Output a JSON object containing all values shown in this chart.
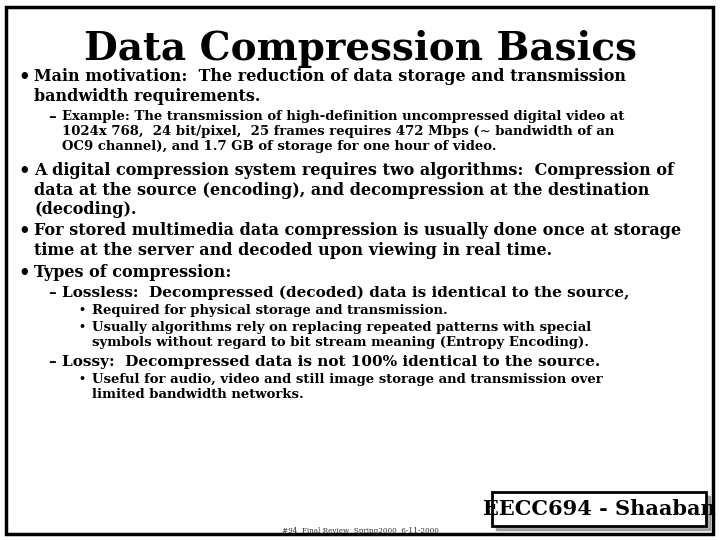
{
  "title": "Data Compression Basics",
  "background_color": "#ffffff",
  "border_color": "#000000",
  "title_font_size": 28,
  "footer_label": "EECC694 - Shaaban",
  "footer_sub": "#94  Final Review  Spring2000  6-11-2000",
  "lines": [
    {
      "indent": 0,
      "bullet": "•",
      "bsize": 13,
      "text": "Main motivation:  The reduction of data storage and transmission\nbandwidth requirements.",
      "size": 11.5
    },
    {
      "indent": 1,
      "bullet": "–",
      "bsize": 11,
      "text": "Example: The transmission of high-definition uncompressed digital video at\n1024x 768,  24 bit/pixel,  25 frames requires 472 Mbps (~ bandwidth of an\nOC9 channel), and 1.7 GB of storage for one hour of video.",
      "size": 9.5
    },
    {
      "indent": 0,
      "bullet": "•",
      "bsize": 13,
      "text": "A digital compression system requires two algorithms:  Compression of\ndata at the source (encoding), and decompression at the destination\n(decoding).",
      "size": 11.5
    },
    {
      "indent": 0,
      "bullet": "•",
      "bsize": 13,
      "text": "For stored multimedia data compression is usually done once at storage\ntime at the server and decoded upon viewing in real time.",
      "size": 11.5
    },
    {
      "indent": 0,
      "bullet": "•",
      "bsize": 13,
      "text": "Types of compression:",
      "size": 11.5
    },
    {
      "indent": 1,
      "bullet": "–",
      "bsize": 11,
      "text": "Lossless:  Decompressed (decoded) data is identical to the source,",
      "size": 11
    },
    {
      "indent": 2,
      "bullet": "•",
      "bsize": 8,
      "text": "Required for physical storage and transmission.",
      "size": 9.5
    },
    {
      "indent": 2,
      "bullet": "•",
      "bsize": 8,
      "text": "Usually algorithms rely on replacing repeated patterns with special\nsymbols without regard to bit stream meaning (Entropy Encoding).",
      "size": 9.5
    },
    {
      "indent": 1,
      "bullet": "–",
      "bsize": 11,
      "text": "Lossy:  Decompressed data is not 100% identical to the source.",
      "size": 11
    },
    {
      "indent": 2,
      "bullet": "•",
      "bsize": 8,
      "text": "Useful for audio, video and still image storage and transmission over\nlimited bandwidth networks.",
      "size": 9.5
    }
  ],
  "line_spacing": [
    18,
    16,
    18,
    18,
    18,
    16,
    15,
    15,
    16,
    15
  ],
  "gap_after": [
    6,
    4,
    6,
    6,
    4,
    2,
    2,
    4,
    2,
    2
  ]
}
